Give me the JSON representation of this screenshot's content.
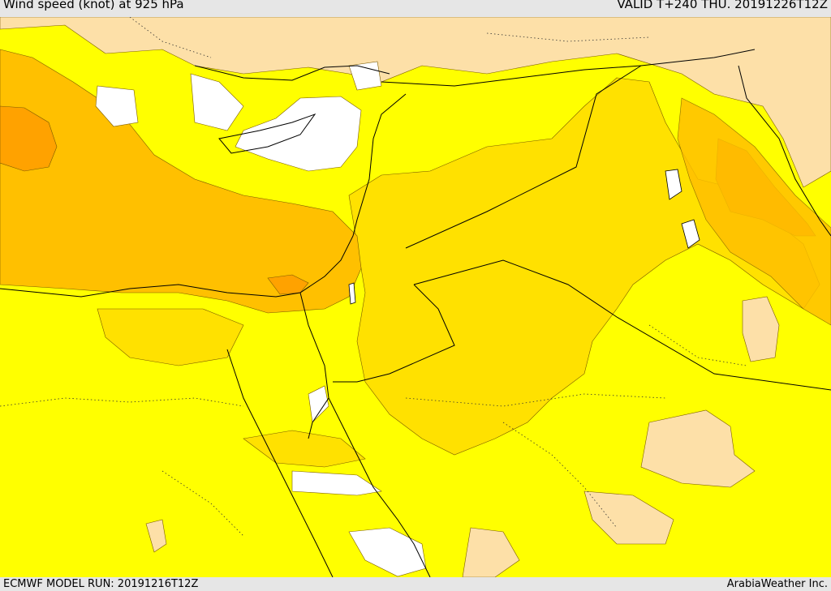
{
  "header": {
    "title": "Wind speed (knot) at 925 hPa",
    "valid": "VALID T+240 THU. 20191226T12Z"
  },
  "footer": {
    "model_run": "ECMWF MODEL RUN: 20191216T12Z",
    "credit": "ArabiaWeather Inc."
  },
  "colors": {
    "calm": "#ffffff",
    "light": "#fde0a8",
    "moderate": "#ffff00",
    "fresh": "#ffe100",
    "strong": "#ffc000",
    "very_strong": "#ffa200",
    "border_line": "#000000",
    "contour_line": "#7a5a00",
    "background": "#e6e6e6"
  }
}
